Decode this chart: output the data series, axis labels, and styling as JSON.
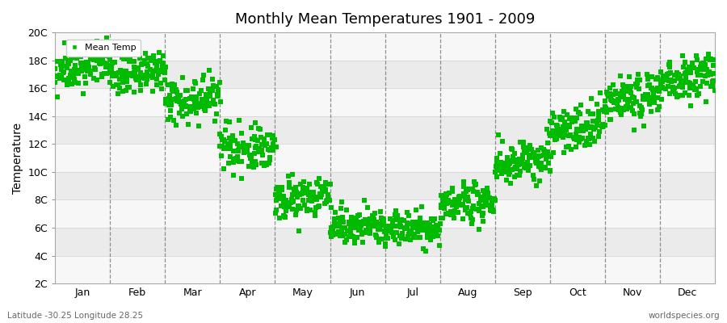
{
  "title": "Monthly Mean Temperatures 1901 - 2009",
  "ylabel": "Temperature",
  "xlabel": "",
  "bottom_left": "Latitude -30.25 Longitude 28.25",
  "bottom_right": "worldspecies.org",
  "legend_label": "Mean Temp",
  "ytick_labels": [
    "2C",
    "4C",
    "6C",
    "8C",
    "10C",
    "12C",
    "14C",
    "16C",
    "18C",
    "20C"
  ],
  "ytick_values": [
    2,
    4,
    6,
    8,
    10,
    12,
    14,
    16,
    18,
    20
  ],
  "ylim": [
    2,
    20
  ],
  "month_labels": [
    "Jan",
    "Feb",
    "Mar",
    "Apr",
    "May",
    "Jun",
    "Jul",
    "Aug",
    "Sep",
    "Oct",
    "Nov",
    "Dec"
  ],
  "monthly_means": [
    17.2,
    16.8,
    15.0,
    11.5,
    8.0,
    6.0,
    5.8,
    7.5,
    10.5,
    13.0,
    15.0,
    16.5
  ],
  "monthly_stds": [
    0.7,
    0.7,
    0.8,
    0.8,
    0.7,
    0.6,
    0.6,
    0.7,
    0.8,
    0.8,
    0.8,
    0.8
  ],
  "monthly_trend": [
    0.005,
    0.005,
    0.004,
    0.004,
    0.004,
    0.003,
    0.003,
    0.004,
    0.004,
    0.005,
    0.005,
    0.005
  ],
  "n_years": 109,
  "year_start": 1901,
  "marker_color": "#00bb00",
  "marker_size": 4,
  "background_color": "#ffffff",
  "band_colors": [
    "#ebebeb",
    "#f7f7f7"
  ],
  "grid_color_h": "#d0d0d0",
  "grid_color_v": "#777777",
  "seed": 42
}
